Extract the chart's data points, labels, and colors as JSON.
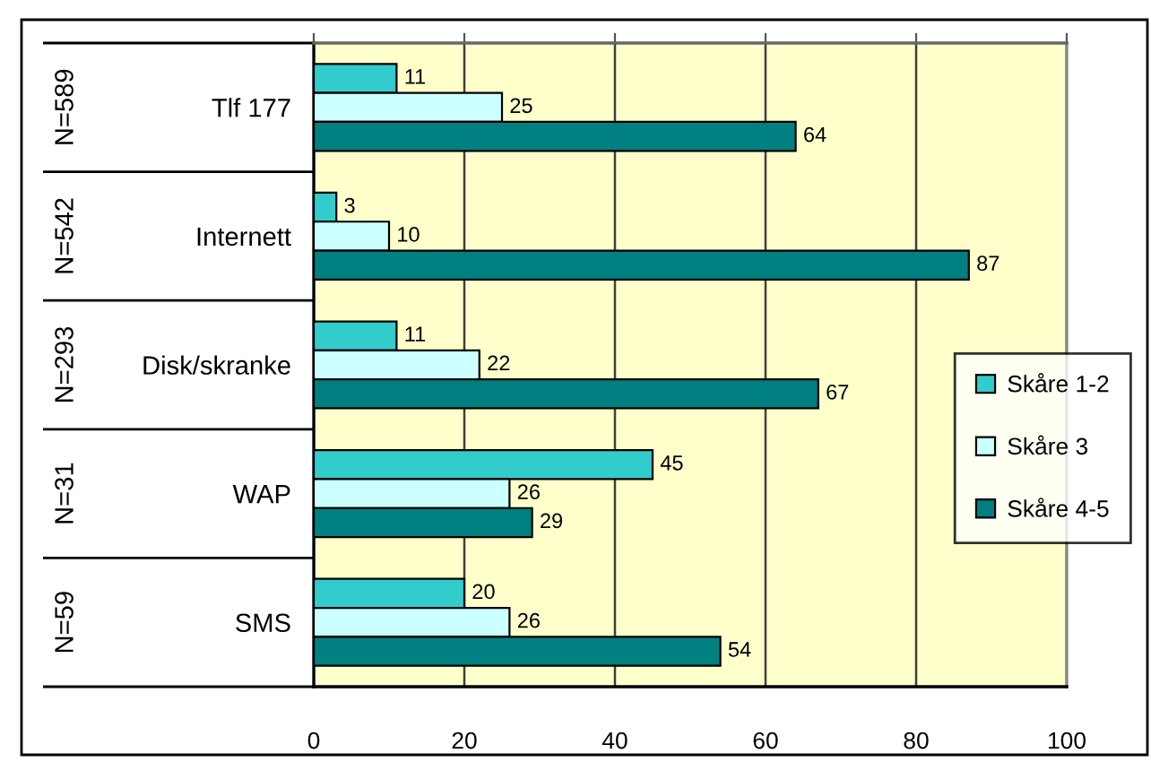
{
  "chart_data": {
    "type": "bar",
    "orientation": "horizontal",
    "categories": [
      "Tlf 177",
      "Internett",
      "Disk/skranke",
      "WAP",
      "SMS"
    ],
    "series": [
      {
        "name": "Skåre 1-2",
        "color": "#33cccc",
        "values": [
          11,
          3,
          11,
          45,
          20
        ]
      },
      {
        "name": "Skåre 3",
        "color": "#ccffff",
        "values": [
          25,
          10,
          22,
          26,
          26
        ]
      },
      {
        "name": "Skåre 4-5",
        "color": "#008080",
        "values": [
          64,
          87,
          67,
          29,
          54
        ]
      }
    ],
    "xlim": [
      0,
      100
    ],
    "xticks": [
      0,
      20,
      40,
      60,
      80,
      100
    ],
    "grid": "x",
    "legend": "right",
    "data_labels": true,
    "annotations": [
      "N=589",
      "N=542",
      "N=293",
      "N=31",
      "N=59"
    ]
  }
}
